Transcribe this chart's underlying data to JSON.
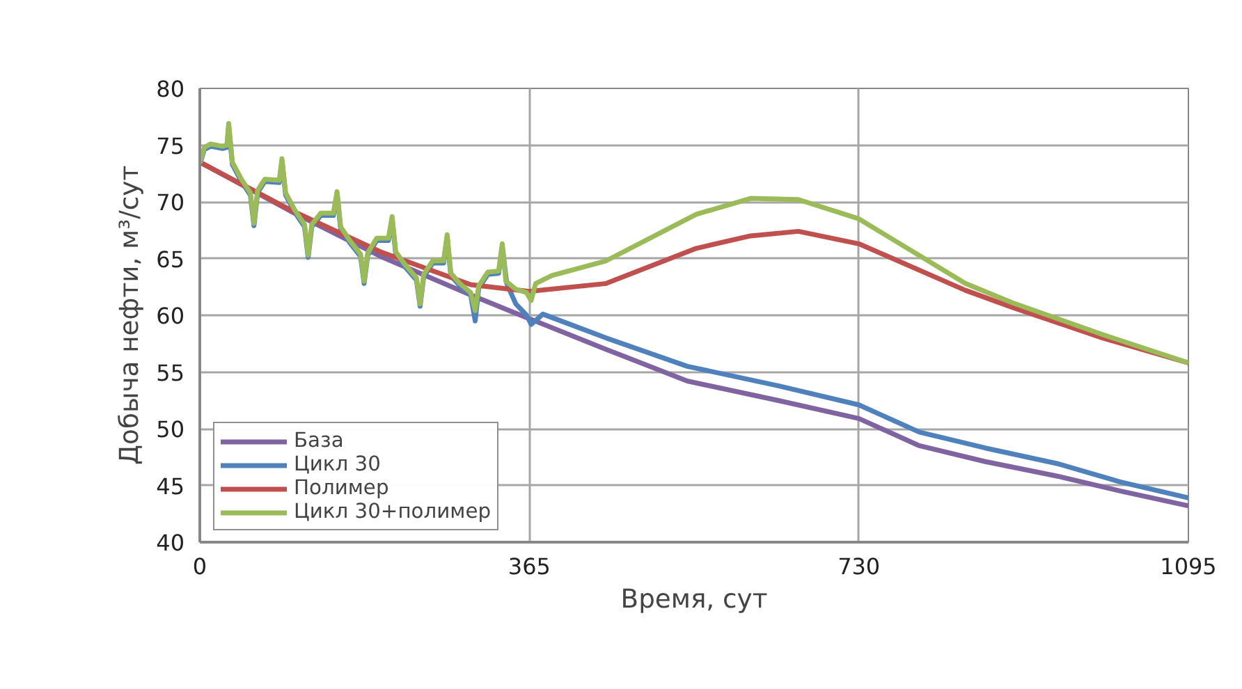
{
  "chart_data": {
    "type": "line",
    "xlabel": "Время, сут",
    "ylabel": "Добыча нефти, м³/сут",
    "xlim": [
      0,
      1095
    ],
    "xticks": [
      0,
      365,
      730,
      1095
    ],
    "ylim": [
      40,
      80
    ],
    "yticks": [
      40,
      45,
      50,
      55,
      60,
      65,
      70,
      75,
      80
    ],
    "grid": true,
    "legend": "bottom left",
    "marker": "none",
    "line_style": "solid",
    "series": [
      {
        "name": "База",
        "color": "#8064a2",
        "x": [
          0,
          100,
          200,
          300,
          365,
          450,
          540,
          640,
          730,
          797,
          870,
          951,
          1020,
          1095
        ],
        "values": [
          73.5,
          69.2,
          65.2,
          61.8,
          59.7,
          57.0,
          54.2,
          52.5,
          50.9,
          48.5,
          47.1,
          45.8,
          44.5,
          43.2
        ]
      },
      {
        "name": "Цикл 30",
        "color": "#4f81bd",
        "x": [
          0,
          5,
          12,
          25,
          30,
          32,
          36,
          46,
          56,
          60,
          64,
          72,
          88,
          91,
          95,
          105,
          116,
          120,
          124,
          134,
          148,
          152,
          156,
          166,
          178,
          182,
          186,
          196,
          209,
          213,
          217,
          227,
          240,
          244,
          248,
          258,
          270,
          274,
          278,
          288,
          300,
          305,
          309,
          319,
          331,
          335,
          340,
          350,
          362,
          367,
          380,
          450,
          540,
          640,
          730,
          797,
          870,
          951,
          1020,
          1095
        ],
        "values": [
          73.3,
          74.6,
          74.9,
          74.7,
          74.8,
          76.7,
          73.3,
          71.8,
          70.6,
          67.9,
          70.8,
          71.8,
          71.7,
          73.6,
          70.6,
          69.1,
          67.8,
          65.1,
          67.8,
          68.8,
          68.8,
          70.7,
          67.6,
          66.4,
          65.2,
          62.8,
          65.3,
          66.6,
          66.6,
          68.5,
          65.4,
          64.3,
          63.1,
          60.8,
          63.4,
          64.6,
          64.6,
          66.9,
          63.5,
          62.6,
          61.8,
          59.5,
          62.4,
          63.6,
          63.7,
          66.1,
          62.8,
          61.0,
          60.0,
          59.2,
          60.1,
          58.0,
          55.5,
          53.8,
          52.1,
          49.7,
          48.3,
          46.9,
          45.3,
          43.9
        ]
      },
      {
        "name": "Полимер",
        "color": "#c0504d",
        "x": [
          0,
          100,
          200,
          300,
          365,
          450,
          550,
          610,
          663,
          730,
          848,
          900,
          1000,
          1095
        ],
        "values": [
          73.5,
          69.3,
          65.6,
          62.7,
          62.1,
          62.8,
          65.9,
          67.0,
          67.4,
          66.3,
          62.2,
          60.7,
          58.0,
          55.8
        ]
      },
      {
        "name": "Цикл 30+полимер",
        "color": "#9bbb59",
        "x": [
          0,
          5,
          12,
          25,
          30,
          32,
          36,
          46,
          56,
          60,
          64,
          72,
          88,
          91,
          95,
          105,
          116,
          120,
          124,
          134,
          148,
          152,
          156,
          166,
          178,
          182,
          186,
          196,
          209,
          213,
          217,
          227,
          240,
          244,
          248,
          258,
          270,
          274,
          278,
          288,
          300,
          305,
          309,
          319,
          331,
          335,
          339,
          350,
          362,
          367,
          372,
          390,
          450,
          550,
          610,
          663,
          730,
          848,
          900,
          1000,
          1095
        ],
        "values": [
          73.4,
          74.8,
          75.1,
          74.9,
          75.0,
          76.9,
          73.5,
          72.0,
          70.8,
          68.1,
          71.0,
          72.0,
          71.9,
          73.8,
          70.8,
          69.3,
          68.0,
          65.3,
          68.0,
          69.0,
          69.0,
          70.9,
          67.8,
          66.6,
          65.4,
          63.0,
          65.5,
          66.8,
          66.8,
          68.7,
          65.6,
          64.5,
          63.3,
          61.0,
          63.6,
          64.8,
          64.8,
          67.1,
          63.7,
          62.8,
          62.0,
          60.4,
          62.6,
          63.8,
          63.9,
          66.3,
          63.0,
          62.3,
          62.0,
          61.3,
          62.8,
          63.5,
          64.8,
          68.9,
          70.3,
          70.2,
          68.5,
          62.8,
          61.1,
          58.3,
          55.8
        ]
      }
    ]
  }
}
